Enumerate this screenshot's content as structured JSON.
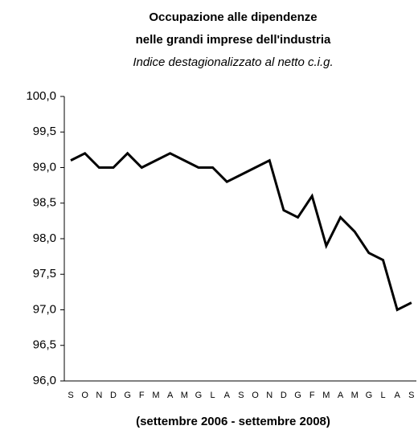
{
  "chart_data": {
    "type": "line",
    "title": [
      "Occupazione alle dipendenze",
      "nelle grandi imprese dell'industria"
    ],
    "subtitle": "Indice destagionalizzato al netto c.i.g.",
    "x_label": "(settembre 2006 - settembre 2008)",
    "categories": [
      "S",
      "O",
      "N",
      "D",
      "G",
      "F",
      "M",
      "A",
      "M",
      "G",
      "L",
      "A",
      "S",
      "O",
      "N",
      "D",
      "G",
      "F",
      "M",
      "A",
      "M",
      "G",
      "L",
      "A",
      "S"
    ],
    "series": [
      {
        "color": "#000000",
        "values": [
          99.1,
          99.2,
          99.0,
          99.0,
          99.2,
          99.0,
          99.1,
          99.2,
          99.1,
          99.0,
          99.0,
          98.8,
          98.9,
          99.0,
          99.1,
          98.4,
          98.3,
          98.6,
          97.9,
          98.3,
          98.1,
          97.8,
          97.7,
          97.0,
          97.1
        ]
      }
    ],
    "ylim": [
      96,
      100
    ],
    "yticks": [
      {
        "value": 96,
        "label": "96,0"
      },
      {
        "value": 96.5,
        "label": "96,5"
      },
      {
        "value": 97,
        "label": "97,0"
      },
      {
        "value": 97.5,
        "label": "97,5"
      },
      {
        "value": 98,
        "label": "98,0"
      },
      {
        "value": 98.5,
        "label": "98,5"
      },
      {
        "value": 99,
        "label": "99,0"
      },
      {
        "value": 99.5,
        "label": "99,5"
      },
      {
        "value": 100,
        "label": "100,0"
      }
    ],
    "grid": false
  }
}
